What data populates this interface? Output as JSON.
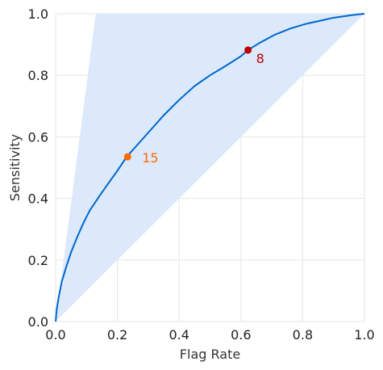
{
  "chart_data": {
    "type": "line",
    "title": "",
    "xlabel": "Flag Rate",
    "ylabel": "Sensitivity",
    "xlim": [
      0,
      1
    ],
    "ylim": [
      0,
      1
    ],
    "grid": true,
    "x_ticks": [
      "0.0",
      "0.2",
      "0.4",
      "0.6",
      "0.8",
      "1.0"
    ],
    "y_ticks": [
      "0.0",
      "0.2",
      "0.4",
      "0.6",
      "0.8",
      "1.0"
    ],
    "colors": {
      "curve": "#0066cc",
      "band": "#dce9fb",
      "grid": "#e6e6e6",
      "point_15": "#ff6a00",
      "point_8": "#c00000"
    },
    "band": [
      {
        "x": 0.0,
        "y": 0.0
      },
      {
        "x": 0.13,
        "y": 1.0
      },
      {
        "x": 1.0,
        "y": 1.0
      }
    ],
    "series": [
      {
        "x": [
          0.0,
          0.003,
          0.01,
          0.02,
          0.035,
          0.05,
          0.07,
          0.09,
          0.11,
          0.14,
          0.17,
          0.2,
          0.23,
          0.27,
          0.31,
          0.35,
          0.4,
          0.45,
          0.5,
          0.55,
          0.6,
          0.623,
          0.66,
          0.71,
          0.76,
          0.81,
          0.86,
          0.9,
          0.95,
          0.98,
          1.0
        ],
        "y": [
          0.0,
          0.035,
          0.08,
          0.13,
          0.18,
          0.225,
          0.275,
          0.32,
          0.36,
          0.405,
          0.448,
          0.49,
          0.535,
          0.58,
          0.625,
          0.67,
          0.72,
          0.765,
          0.8,
          0.83,
          0.862,
          0.882,
          0.905,
          0.932,
          0.952,
          0.967,
          0.978,
          0.987,
          0.994,
          0.998,
          1.0
        ]
      }
    ],
    "annotations": [
      {
        "label": "15",
        "x": 0.233,
        "y": 0.535
      },
      {
        "label": "8",
        "x": 0.623,
        "y": 0.882
      }
    ]
  }
}
